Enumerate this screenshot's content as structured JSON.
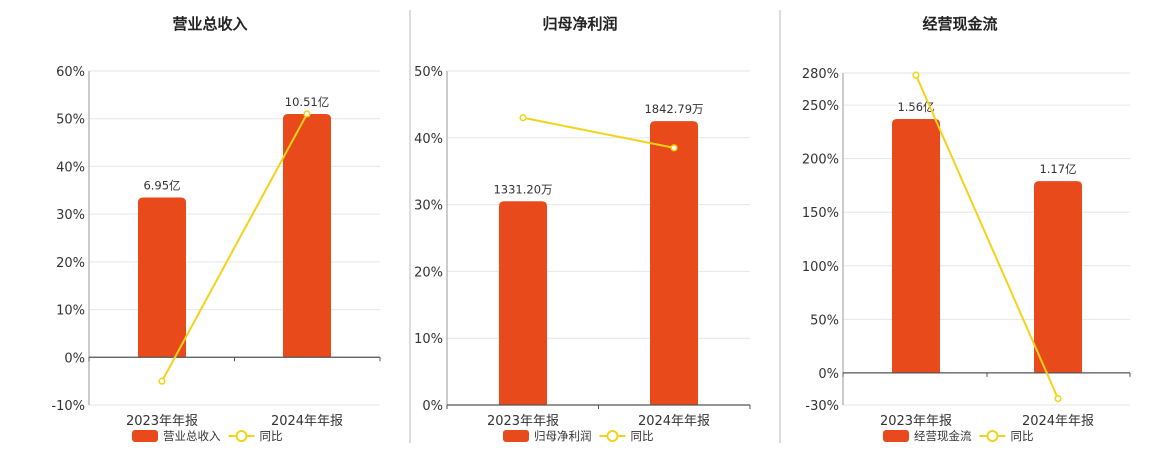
{
  "colors": {
    "bar": "#E84A1B",
    "line": "#F2D31B",
    "grid": "#E6E6E6",
    "axis": "#555555",
    "divider": "#BBBBBB"
  },
  "chart_data": [
    {
      "type": "bar",
      "title": "营业总收入",
      "categories": [
        "2023年年报",
        "2024年年报"
      ],
      "yticks": [
        "60%",
        "50%",
        "40%",
        "30%",
        "20%",
        "10%",
        "0%",
        "-10%"
      ],
      "ylim": [
        -10,
        60
      ],
      "baseline": 0,
      "series": [
        {
          "name": "营业总收入",
          "kind": "bar",
          "values": [
            33.5,
            51
          ],
          "labels": [
            "6.95亿",
            "10.51亿"
          ]
        },
        {
          "name": "同比",
          "kind": "line",
          "values": [
            -5,
            51
          ]
        }
      ],
      "legend": [
        "营业总收入",
        "同比"
      ]
    },
    {
      "type": "bar",
      "title": "归母净利润",
      "categories": [
        "2023年年报",
        "2024年年报"
      ],
      "yticks": [
        "50%",
        "40%",
        "30%",
        "20%",
        "10%",
        "0%"
      ],
      "ylim": [
        0,
        50
      ],
      "baseline": 0,
      "series": [
        {
          "name": "归母净利润",
          "kind": "bar",
          "values": [
            30.5,
            42.5
          ],
          "labels": [
            "1331.20万",
            "1842.79万"
          ]
        },
        {
          "name": "同比",
          "kind": "line",
          "values": [
            43,
            38.5
          ]
        }
      ],
      "legend": [
        "归母净利润",
        "同比"
      ]
    },
    {
      "type": "bar",
      "title": "经营现金流",
      "categories": [
        "2023年年报",
        "2024年年报"
      ],
      "yticks": [
        "280%",
        "250%",
        "200%",
        "150%",
        "100%",
        "50%",
        "0%",
        "-30%"
      ],
      "ylim": [
        -30,
        280
      ],
      "baseline": 0,
      "series": [
        {
          "name": "经营现金流",
          "kind": "bar",
          "values": [
            237,
            179
          ],
          "labels": [
            "1.56亿",
            "1.17亿"
          ]
        },
        {
          "name": "同比",
          "kind": "line",
          "values": [
            278,
            -24
          ]
        }
      ],
      "legend": [
        "经营现金流",
        "同比"
      ]
    }
  ]
}
